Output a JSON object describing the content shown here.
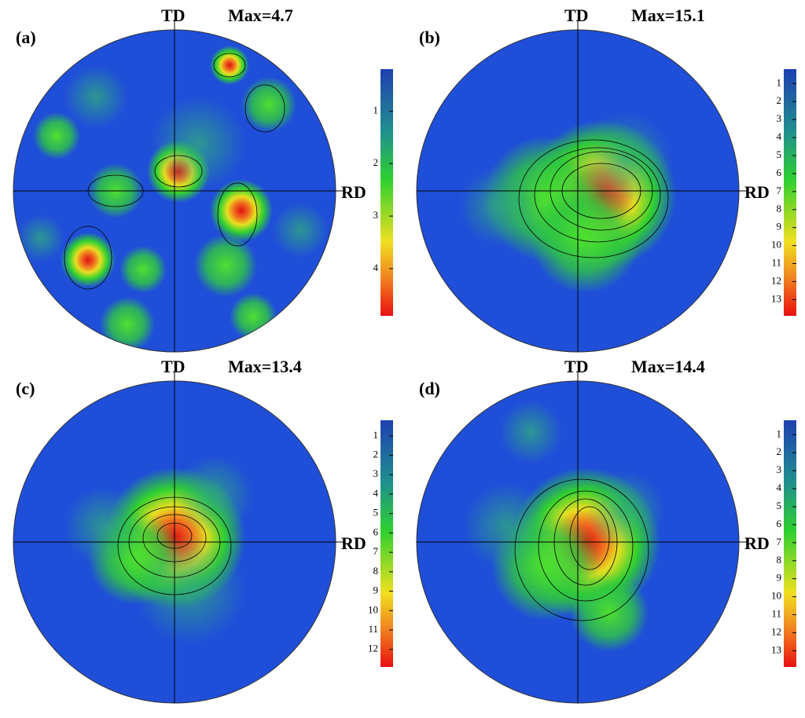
{
  "panels": [
    {
      "label": "(a)",
      "td": "TD",
      "max": "Max=4.7",
      "rd": "RD",
      "scale": [
        "1",
        "2",
        "3",
        "4"
      ]
    },
    {
      "label": "(b)",
      "td": "TD",
      "max": "Max=15.1",
      "rd": "RD",
      "scale": [
        "1",
        "2",
        "3",
        "4",
        "5",
        "6",
        "7",
        "8",
        "9",
        "10",
        "11",
        "12",
        "13"
      ]
    },
    {
      "label": "(c)",
      "td": "TD",
      "max": "Max=13.4",
      "rd": "RD",
      "scale": [
        "1",
        "2",
        "3",
        "4",
        "5",
        "6",
        "7",
        "8",
        "9",
        "10",
        "11",
        "12"
      ]
    },
    {
      "label": "(d)",
      "td": "TD",
      "max": "Max=14.4",
      "rd": "RD",
      "scale": [
        "1",
        "2",
        "3",
        "4",
        "5",
        "6",
        "7",
        "8",
        "9",
        "10",
        "11",
        "12",
        "13"
      ]
    }
  ]
}
